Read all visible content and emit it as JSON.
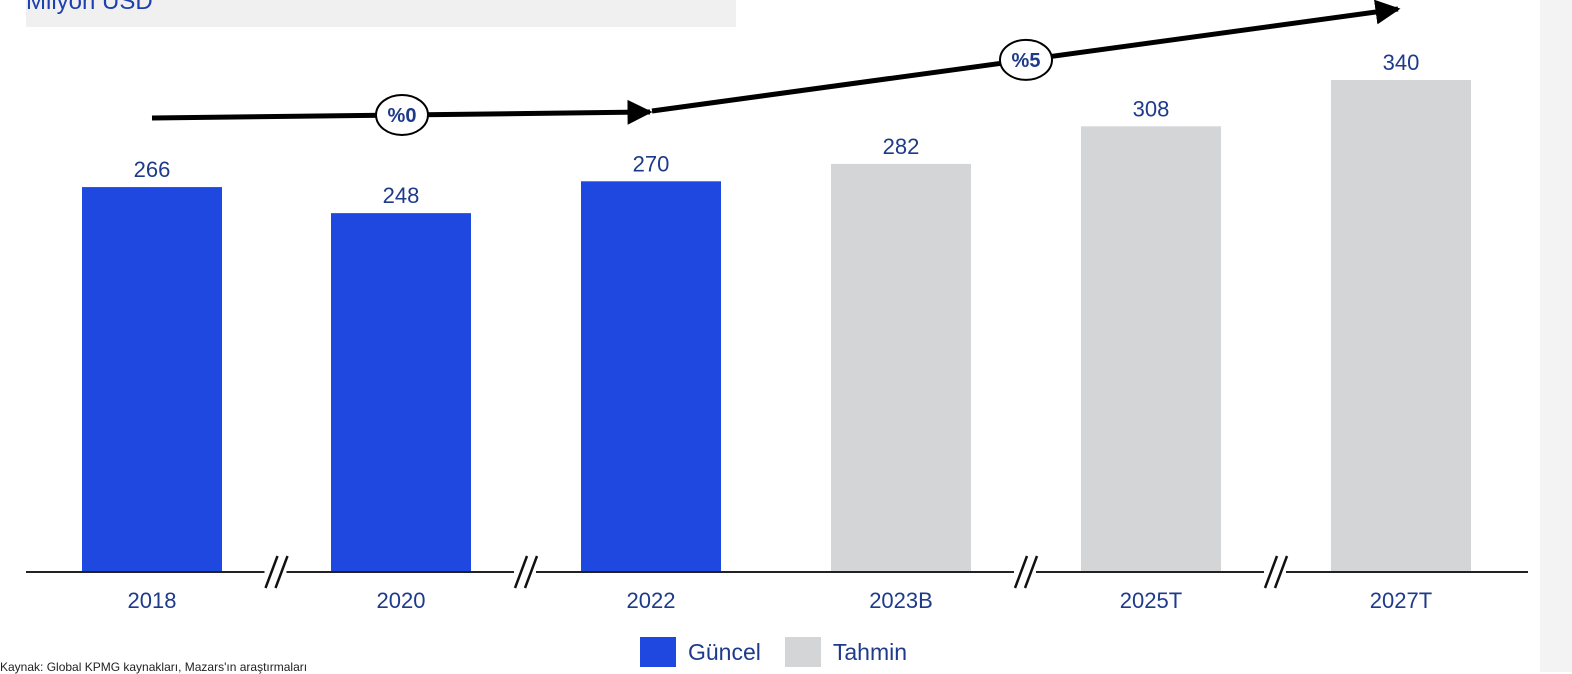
{
  "header": {
    "title": "Milyon USD"
  },
  "footer": {
    "source": "Kaynak: Global KPMG kaynakları, Mazars'ın araştırmaları"
  },
  "legend": [
    {
      "label": "Güncel",
      "color": "#1f48e0"
    },
    {
      "label": "Tahmin",
      "color": "#d4d5d7"
    }
  ],
  "chart_data": {
    "type": "bar",
    "title": "Milyon USD",
    "categories": [
      "2018",
      "2020",
      "2022",
      "2023B",
      "2025T",
      "2027T"
    ],
    "values": [
      266,
      248,
      270,
      282,
      308,
      340
    ],
    "series_kind": [
      "Güncel",
      "Güncel",
      "Güncel",
      "Tahmin",
      "Tahmin",
      "Tahmin"
    ],
    "ylim": [
      0,
      340
    ],
    "grid": false,
    "axis_breaks_after": [
      "2018",
      "2020",
      "2023B",
      "2025T"
    ],
    "growth_annotations": [
      {
        "label": "%0",
        "from": "2018",
        "to": "2022"
      },
      {
        "label": "%5",
        "from": "2022",
        "to": "2027T"
      }
    ],
    "legend_position": "bottom",
    "value_label_color": "#1e3a8a"
  }
}
